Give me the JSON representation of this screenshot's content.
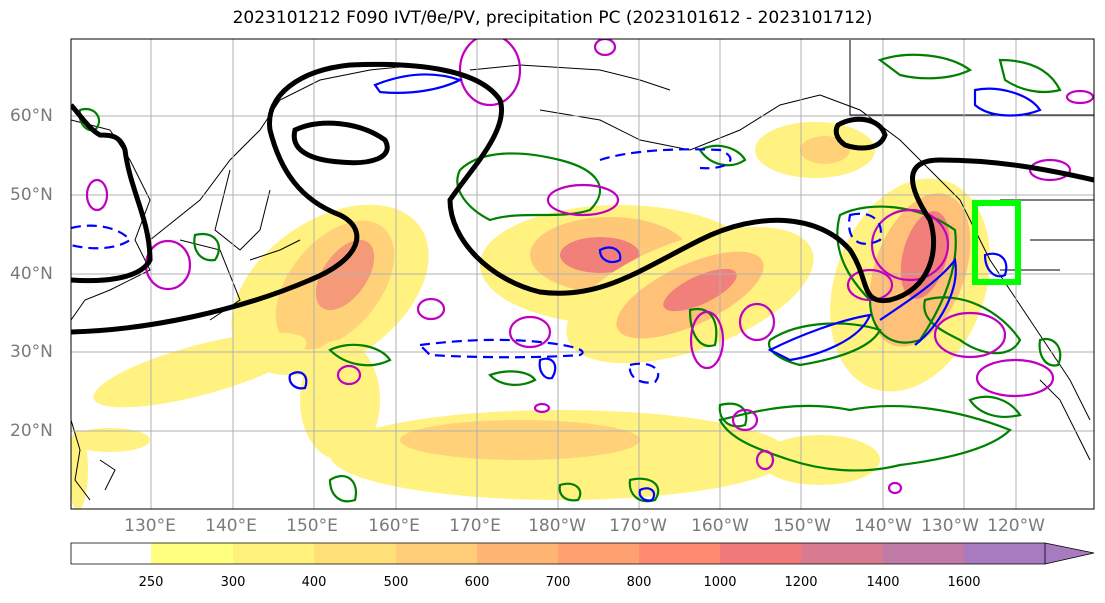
{
  "title": "2023101212 F090 IVT/θe/PV, precipitation PC (2023101612 - 2023101712)",
  "latitude_labels": [
    "20°N",
    "30°N",
    "40°N",
    "50°N",
    "60°N"
  ],
  "longitude_labels": [
    "130°E",
    "140°E",
    "150°E",
    "160°E",
    "170°E",
    "180°W",
    "170°W",
    "160°W",
    "150°W",
    "140°W",
    "130°W",
    "120°W"
  ],
  "colorbar": {
    "levels": [
      "250",
      "300",
      "400",
      "500",
      "600",
      "700",
      "800",
      "1000",
      "1200",
      "1400",
      "1600"
    ],
    "colors": [
      "#ffff80",
      "#fff27a",
      "#ffe078",
      "#ffcc77",
      "#ffb675",
      "#ffa070",
      "#ff8a70",
      "#f07a7a",
      "#d87a90",
      "#c07aa8",
      "#a87ac0"
    ]
  },
  "colors": {
    "ivt_fill_light": "#fff07a",
    "ivt_fill_mid": "#ffb878",
    "ivt_fill_high": "#f07878",
    "theta_e_contour": "#000000",
    "pv_contour": "#0000ff",
    "precip_positive": "#c000c0",
    "precip_negative": "#008000",
    "highlight_box": "#00ff00",
    "coastline": "#000000",
    "grid": "#b0b0b0"
  }
}
